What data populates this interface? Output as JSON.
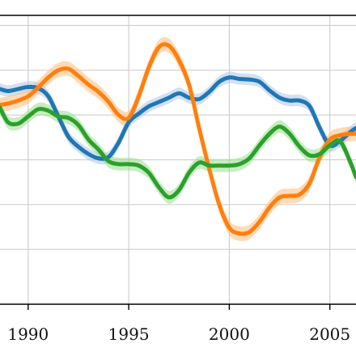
{
  "chart_data": {
    "type": "line",
    "title": "",
    "xlabel": "",
    "ylabel": "",
    "xlim": [
      1988.6,
      2006.3
    ],
    "ylim": [
      0,
      1
    ],
    "x_ticks": [
      1990,
      1995,
      2000,
      2005
    ],
    "x_tick_labels": [
      "1990",
      "1995",
      "2000",
      "2005"
    ],
    "y_gridlines": [
      0.19,
      0.345,
      0.5,
      0.655,
      0.81,
      0.965
    ],
    "grid": true,
    "legend": "none",
    "series": [
      {
        "color": "#1f77b4",
        "band_color": "#aec7e8",
        "x": [
          1988.6,
          1989.0,
          1989.5,
          1990.0,
          1990.5,
          1991.0,
          1991.5,
          1992.0,
          1992.5,
          1993.0,
          1993.5,
          1994.0,
          1994.5,
          1995.0,
          1995.5,
          1996.0,
          1996.5,
          1997.0,
          1997.5,
          1998.0,
          1998.5,
          1999.0,
          1999.5,
          2000.0,
          2000.5,
          2001.0,
          2001.5,
          2002.0,
          2002.5,
          2003.0,
          2003.5,
          2004.0,
          2004.5,
          2005.0,
          2005.5,
          2006.0,
          2006.3
        ],
        "y": [
          0.745,
          0.738,
          0.745,
          0.752,
          0.748,
          0.72,
          0.65,
          0.58,
          0.545,
          0.52,
          0.505,
          0.51,
          0.56,
          0.63,
          0.66,
          0.685,
          0.7,
          0.715,
          0.73,
          0.715,
          0.71,
          0.735,
          0.77,
          0.785,
          0.78,
          0.778,
          0.77,
          0.74,
          0.715,
          0.705,
          0.705,
          0.685,
          0.61,
          0.55,
          0.565,
          0.595,
          0.61
        ],
        "band_halfwidth": 0.02
      },
      {
        "color": "#ff7f0e",
        "band_color": "#ffbb78",
        "x": [
          1988.6,
          1989.0,
          1989.5,
          1990.0,
          1990.5,
          1991.0,
          1991.5,
          1992.0,
          1992.5,
          1993.0,
          1993.5,
          1994.0,
          1994.5,
          1995.0,
          1995.5,
          1996.0,
          1996.5,
          1997.0,
          1997.5,
          1998.0,
          1998.5,
          1999.0,
          1999.5,
          2000.0,
          2000.5,
          2001.0,
          2001.5,
          2002.0,
          2002.5,
          2003.0,
          2003.5,
          2004.0,
          2004.5,
          2005.0,
          2005.5,
          2006.0,
          2006.3
        ],
        "y": [
          0.69,
          0.695,
          0.705,
          0.72,
          0.75,
          0.785,
          0.81,
          0.815,
          0.79,
          0.76,
          0.735,
          0.7,
          0.655,
          0.645,
          0.72,
          0.82,
          0.89,
          0.895,
          0.845,
          0.76,
          0.61,
          0.47,
          0.345,
          0.265,
          0.245,
          0.25,
          0.285,
          0.335,
          0.37,
          0.375,
          0.38,
          0.42,
          0.51,
          0.57,
          0.585,
          0.59,
          0.59
        ],
        "band_halfwidth": 0.025
      },
      {
        "color": "#2ca02c",
        "band_color": "#98df8a",
        "x": [
          1988.6,
          1989.0,
          1989.5,
          1990.0,
          1990.5,
          1991.0,
          1991.5,
          1992.0,
          1992.5,
          1993.0,
          1993.5,
          1994.0,
          1994.5,
          1995.0,
          1995.5,
          1996.0,
          1996.5,
          1997.0,
          1997.5,
          1998.0,
          1998.5,
          1999.0,
          1999.5,
          2000.0,
          2000.5,
          2001.0,
          2001.5,
          2002.0,
          2002.5,
          2003.0,
          2003.5,
          2004.0,
          2004.5,
          2005.0,
          2005.5,
          2006.0,
          2006.3
        ],
        "y": [
          0.68,
          0.63,
          0.625,
          0.65,
          0.675,
          0.67,
          0.65,
          0.645,
          0.62,
          0.57,
          0.535,
          0.495,
          0.485,
          0.485,
          0.48,
          0.455,
          0.405,
          0.37,
          0.395,
          0.455,
          0.49,
          0.48,
          0.48,
          0.48,
          0.485,
          0.505,
          0.55,
          0.59,
          0.615,
          0.59,
          0.545,
          0.515,
          0.52,
          0.55,
          0.565,
          0.495,
          0.44
        ],
        "band_halfwidth": 0.022
      }
    ]
  }
}
